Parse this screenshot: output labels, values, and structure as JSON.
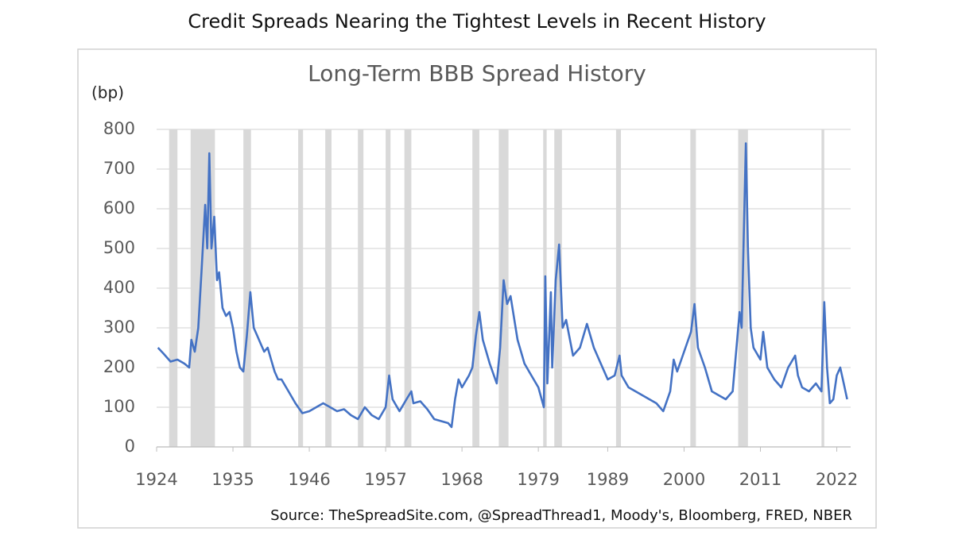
{
  "chart_data": {
    "type": "line",
    "title": "Credit Spreads Nearing the Tightest Levels in Recent History",
    "subtitle": "Long-Term BBB Spread History",
    "y_label": "(bp)",
    "source": "Source: TheSpreadSite.com, @SpreadThread1, Moody's, Bloomberg, FRED, NBER",
    "xlim": [
      1924,
      2024
    ],
    "xticks": [
      1924,
      1935,
      1946,
      1957,
      1968,
      1979,
      1989,
      2000,
      2011,
      2022
    ],
    "ylim": [
      0,
      800
    ],
    "yticks": [
      0,
      100,
      200,
      300,
      400,
      500,
      600,
      700,
      800
    ],
    "grid": true,
    "shaded_color": "#d9d9d9",
    "shaded_periods": [
      [
        1925.8,
        1927.0
      ],
      [
        1928.9,
        1932.4
      ],
      [
        1936.5,
        1937.6
      ],
      [
        1944.4,
        1945.1
      ],
      [
        1948.3,
        1949.2
      ],
      [
        1953.0,
        1953.8
      ],
      [
        1957.0,
        1957.7
      ],
      [
        1959.7,
        1960.7
      ],
      [
        1969.5,
        1970.5
      ],
      [
        1973.3,
        1974.7
      ],
      [
        1979.7,
        1980.2
      ],
      [
        1981.3,
        1982.4
      ],
      [
        1990.2,
        1990.9
      ],
      [
        2000.9,
        2001.7
      ],
      [
        2007.8,
        2009.2
      ],
      [
        2019.8,
        2020.2
      ]
    ],
    "series": [
      {
        "color": "#4472c4",
        "x": [
          1924.2,
          1925,
          1926,
          1927,
          1928,
          1928.7,
          1929,
          1929.5,
          1930,
          1930.5,
          1931,
          1931.3,
          1931.6,
          1931.9,
          1932.3,
          1932.7,
          1933,
          1933.5,
          1934,
          1934.5,
          1935,
          1935.5,
          1936,
          1936.5,
          1937,
          1937.5,
          1938,
          1938.5,
          1939,
          1939.5,
          1940,
          1940.5,
          1941,
          1941.5,
          1942,
          1943,
          1944,
          1945,
          1946,
          1947,
          1948,
          1949,
          1950,
          1951,
          1952,
          1953,
          1954,
          1955,
          1956,
          1957,
          1957.5,
          1958,
          1959,
          1960,
          1960.7,
          1961,
          1962,
          1963,
          1964,
          1965,
          1966,
          1966.5,
          1967,
          1967.5,
          1968,
          1969,
          1969.5,
          1970,
          1970.5,
          1971,
          1972,
          1973,
          1973.5,
          1974,
          1974.5,
          1975,
          1976,
          1977,
          1978,
          1979,
          1979.8,
          1980,
          1980.3,
          1980.8,
          1981,
          1981.5,
          1982,
          1982.5,
          1983,
          1984,
          1985,
          1986,
          1987,
          1988,
          1989,
          1990,
          1990.7,
          1991,
          1992,
          1993,
          1994,
          1995,
          1996,
          1997,
          1998,
          1998.5,
          1999,
          2000,
          2001,
          2001.5,
          2002,
          2003,
          2004,
          2005,
          2006,
          2007,
          2008,
          2008.3,
          2008.9,
          2009.2,
          2009.6,
          2010,
          2011,
          2011.4,
          2012,
          2013,
          2014,
          2015,
          2016,
          2016.4,
          2017,
          2018,
          2019,
          2019.8,
          2020.2,
          2020.6,
          2021,
          2021.5,
          2022,
          2022.5,
          2023,
          2023.5
        ],
        "values": [
          250,
          235,
          215,
          220,
          210,
          200,
          270,
          240,
          300,
          450,
          610,
          500,
          740,
          500,
          580,
          420,
          440,
          350,
          330,
          340,
          300,
          240,
          200,
          190,
          280,
          390,
          300,
          280,
          260,
          240,
          250,
          220,
          190,
          170,
          170,
          140,
          110,
          85,
          90,
          100,
          110,
          100,
          90,
          95,
          80,
          70,
          100,
          80,
          70,
          100,
          180,
          120,
          90,
          120,
          140,
          110,
          115,
          95,
          70,
          65,
          60,
          50,
          120,
          170,
          150,
          180,
          200,
          280,
          340,
          270,
          210,
          160,
          250,
          420,
          360,
          380,
          270,
          210,
          180,
          150,
          100,
          430,
          160,
          390,
          200,
          420,
          510,
          300,
          320,
          230,
          250,
          310,
          250,
          210,
          170,
          180,
          230,
          180,
          150,
          140,
          130,
          120,
          110,
          90,
          140,
          220,
          190,
          240,
          290,
          360,
          250,
          200,
          140,
          130,
          120,
          140,
          340,
          300,
          765,
          500,
          300,
          250,
          220,
          290,
          200,
          170,
          150,
          200,
          230,
          180,
          150,
          140,
          160,
          140,
          365,
          200,
          110,
          120,
          180,
          200,
          160,
          120
        ]
      }
    ]
  }
}
